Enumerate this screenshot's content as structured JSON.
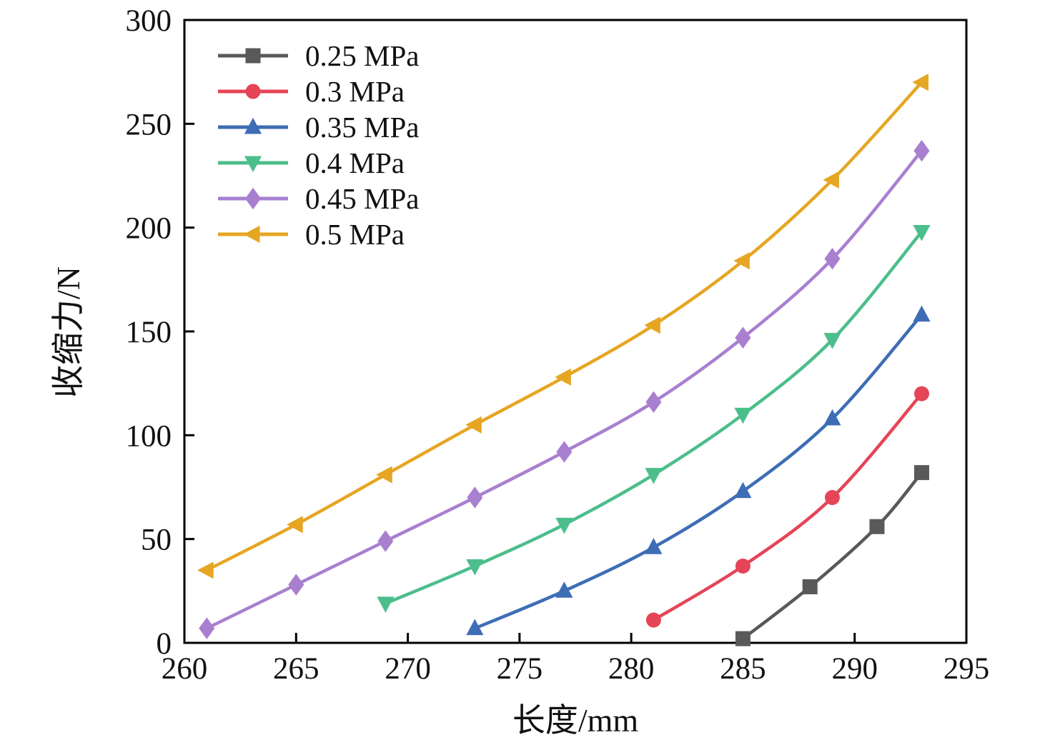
{
  "chart_data": {
    "type": "line",
    "title": "",
    "xlabel": "长度/mm",
    "ylabel": "收缩力/N",
    "xlim": [
      260,
      295
    ],
    "ylim": [
      0,
      300
    ],
    "xticks": [
      260,
      265,
      270,
      275,
      280,
      285,
      290,
      295
    ],
    "yticks": [
      0,
      50,
      100,
      150,
      200,
      250,
      300
    ],
    "grid": false,
    "legend_position": "upper-left",
    "series": [
      {
        "name": "0.25 MPa",
        "color": "#595959",
        "marker": "square",
        "x": [
          285,
          288,
          291,
          293
        ],
        "y": [
          2,
          27,
          56,
          82
        ]
      },
      {
        "name": "0.3 MPa",
        "color": "#e64457",
        "marker": "circle",
        "x": [
          281,
          285,
          289,
          293
        ],
        "y": [
          11,
          37,
          70,
          120
        ]
      },
      {
        "name": "0.35 MPa",
        "color": "#3e6db5",
        "marker": "triangle-up",
        "x": [
          273,
          277,
          281,
          285,
          289,
          293
        ],
        "y": [
          7,
          25,
          46,
          73,
          108,
          158
        ]
      },
      {
        "name": "0.4 MPa",
        "color": "#4cbe8b",
        "marker": "triangle-down",
        "x": [
          269,
          273,
          277,
          281,
          285,
          289,
          293
        ],
        "y": [
          19,
          37,
          57,
          81,
          110,
          146,
          198
        ]
      },
      {
        "name": "0.45 MPa",
        "color": "#a97fd0",
        "marker": "diamond",
        "x": [
          261,
          265,
          269,
          273,
          277,
          281,
          285,
          289,
          293
        ],
        "y": [
          7,
          28,
          49,
          70,
          92,
          116,
          147,
          185,
          237
        ]
      },
      {
        "name": "0.5 MPa",
        "color": "#e6a623",
        "marker": "triangle-left",
        "x": [
          261,
          265,
          269,
          273,
          277,
          281,
          285,
          289,
          293
        ],
        "y": [
          35,
          57,
          81,
          105,
          128,
          153,
          184,
          223,
          270
        ]
      }
    ]
  }
}
